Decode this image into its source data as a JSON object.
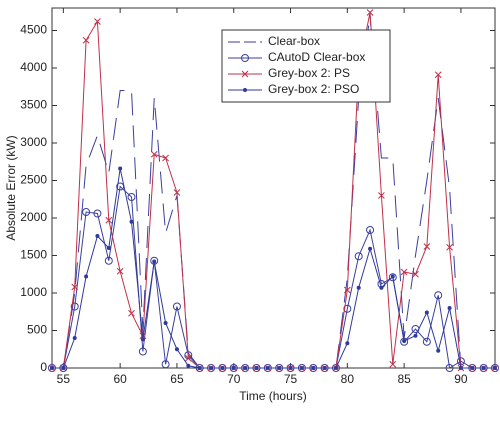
{
  "chart_data": {
    "type": "line",
    "x_label": "Time (hours)",
    "y_label": "Absolute Error (kW)",
    "x": [
      54,
      55,
      56,
      57,
      58,
      59,
      60,
      61,
      62,
      63,
      64,
      65,
      66,
      67,
      68,
      69,
      70,
      71,
      72,
      73,
      74,
      75,
      76,
      77,
      78,
      79,
      80,
      81,
      82,
      83,
      84,
      85,
      86,
      87,
      88,
      89,
      90,
      91,
      92,
      93
    ],
    "series": [
      {
        "name": "Clear-box",
        "color": "#3a3f9e",
        "linestyle": "dashed",
        "marker": "none",
        "values": [
          0,
          0,
          1000,
          2700,
          3100,
          2600,
          3700,
          3700,
          500,
          3600,
          1800,
          2300,
          200,
          0,
          0,
          0,
          0,
          0,
          0,
          0,
          0,
          0,
          0,
          0,
          0,
          0,
          1200,
          3600,
          4700,
          2800,
          2800,
          400,
          1500,
          2500,
          3600,
          2400,
          0,
          0,
          0,
          0
        ]
      },
      {
        "name": "CAutoD Clear-box",
        "color": "#3a3f9e",
        "linestyle": "solid",
        "marker": "o",
        "values": [
          0,
          0,
          820,
          2080,
          2060,
          1430,
          2420,
          2280,
          220,
          1430,
          50,
          820,
          170,
          0,
          0,
          0,
          0,
          0,
          0,
          0,
          0,
          0,
          0,
          0,
          0,
          0,
          790,
          1490,
          1840,
          1120,
          1210,
          350,
          520,
          350,
          970,
          0,
          90,
          0,
          0,
          0
        ]
      },
      {
        "name": "Grey-box 2: PS",
        "color": "#c0304a",
        "linestyle": "solid",
        "marker": "x",
        "values": [
          0,
          0,
          1080,
          4370,
          4620,
          1970,
          1290,
          730,
          430,
          2850,
          2800,
          2340,
          130,
          0,
          0,
          0,
          0,
          0,
          0,
          0,
          0,
          0,
          0,
          0,
          0,
          0,
          1040,
          4000,
          4740,
          2300,
          50,
          1280,
          1250,
          1620,
          3910,
          1610,
          0,
          0,
          0,
          0
        ]
      },
      {
        "name": "Grey-box 2: PSO",
        "color": "#2f3a9a",
        "linestyle": "solid",
        "marker": ".",
        "values": [
          0,
          0,
          400,
          1220,
          1760,
          1600,
          2660,
          1950,
          380,
          1420,
          600,
          250,
          30,
          0,
          0,
          0,
          0,
          0,
          0,
          0,
          0,
          0,
          0,
          0,
          0,
          0,
          330,
          1070,
          1590,
          1070,
          1220,
          360,
          430,
          740,
          230,
          800,
          0,
          0,
          0,
          0
        ]
      }
    ],
    "xlim": [
      54,
      93
    ],
    "ylim": [
      0,
      4800
    ],
    "xticks": [
      55,
      60,
      65,
      70,
      75,
      80,
      85,
      90
    ],
    "yticks": [
      0,
      500,
      1000,
      1500,
      2000,
      2500,
      3000,
      3500,
      4000,
      4500
    ],
    "grid": false
  }
}
